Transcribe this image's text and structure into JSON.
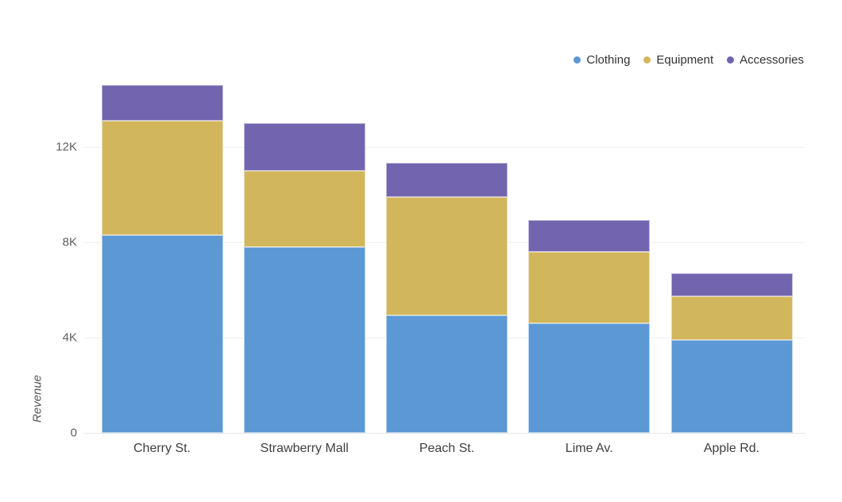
{
  "chart_data": {
    "type": "bar",
    "stacked": true,
    "title": "",
    "xlabel": "",
    "ylabel": "Revenue",
    "categories": [
      "Cherry St.",
      "Strawberry Mall",
      "Peach St.",
      "Lime Av.",
      "Apple Rd."
    ],
    "series": [
      {
        "name": "Clothing",
        "color": "#5B98D4",
        "values": [
          8300,
          7800,
          4950,
          4600,
          3900
        ]
      },
      {
        "name": "Equipment",
        "color": "#D2B65C",
        "values": [
          4800,
          3200,
          4950,
          3000,
          1850
        ]
      },
      {
        "name": "Accessories",
        "color": "#7264AF",
        "values": [
          1500,
          2000,
          1450,
          1350,
          950
        ]
      }
    ],
    "yticks": [
      {
        "value": 0,
        "label": "0"
      },
      {
        "value": 4000,
        "label": "4K"
      },
      {
        "value": 8000,
        "label": "8K"
      },
      {
        "value": 12000,
        "label": "12K"
      }
    ],
    "ylim": [
      0,
      14600
    ],
    "grid": "horizontal",
    "legend_position": "top-right"
  }
}
